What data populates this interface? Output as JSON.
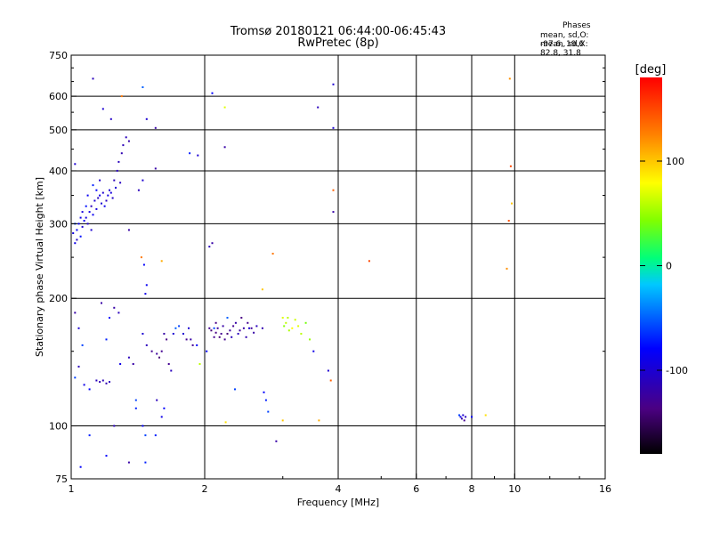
{
  "header": {
    "title": "Tromsø 20180121 06:44:00-06:45:43",
    "subtitle": "RwPretec (8p)",
    "stats_title": "Phases",
    "stats_o": "mean, sd,O: -97.6, 19.6",
    "stats_x": "mean, sd,X:  82.8, 31.8"
  },
  "colorbar": {
    "unit": "deg",
    "ticks": [
      {
        "value": 100,
        "label": "100"
      },
      {
        "value": 0,
        "label": "0"
      },
      {
        "value": -100,
        "label": "-100"
      }
    ],
    "range": [
      -180,
      180
    ]
  },
  "chart_data": {
    "type": "scatter",
    "title": "Tromsø 20180121 06:44:00-06:45:43",
    "subtitle": "RwPretec (8p)",
    "xlabel": "Frequency [MHz]",
    "ylabel": "Stationary phase Virtual Height [km]",
    "xscale": "log",
    "yscale": "log",
    "xlim": [
      1,
      16
    ],
    "ylim": [
      75,
      750
    ],
    "xticks": [
      {
        "value": 1,
        "label": "1"
      },
      {
        "value": 2,
        "label": "2"
      },
      {
        "value": 4,
        "label": "4"
      },
      {
        "value": 6,
        "label": "6"
      },
      {
        "value": 8,
        "label": "8"
      },
      {
        "value": 10,
        "label": "10"
      },
      {
        "value": 16,
        "label": "16"
      }
    ],
    "xgrid": [
      2,
      4,
      6,
      8,
      10
    ],
    "yticks": [
      {
        "value": 75,
        "label": "75"
      },
      {
        "value": 100,
        "label": "100"
      },
      {
        "value": 200,
        "label": "200"
      },
      {
        "value": 300,
        "label": "300"
      },
      {
        "value": 400,
        "label": "400"
      },
      {
        "value": 500,
        "label": "500"
      },
      {
        "value": 600,
        "label": "600"
      },
      {
        "value": 750,
        "label": "750"
      }
    ],
    "ygrid": [
      100,
      200,
      300,
      400,
      500,
      600
    ],
    "color_scale": "phase [deg], -180 to 180",
    "points": [
      {
        "x": 1.01,
        "y": 285,
        "p": -95
      },
      {
        "x": 1.02,
        "y": 270,
        "p": -90
      },
      {
        "x": 1.03,
        "y": 290,
        "p": -80
      },
      {
        "x": 1.04,
        "y": 300,
        "p": -85
      },
      {
        "x": 1.05,
        "y": 280,
        "p": -75
      },
      {
        "x": 1.06,
        "y": 295,
        "p": -100
      },
      {
        "x": 1.07,
        "y": 305,
        "p": -88
      },
      {
        "x": 1.08,
        "y": 310,
        "p": -95
      },
      {
        "x": 1.09,
        "y": 300,
        "p": -105
      },
      {
        "x": 1.1,
        "y": 320,
        "p": -92
      },
      {
        "x": 1.11,
        "y": 330,
        "p": -110
      },
      {
        "x": 1.12,
        "y": 315,
        "p": -85
      },
      {
        "x": 1.13,
        "y": 340,
        "p": -100
      },
      {
        "x": 1.14,
        "y": 325,
        "p": -95
      },
      {
        "x": 1.15,
        "y": 345,
        "p": -108
      },
      {
        "x": 1.16,
        "y": 350,
        "p": -90
      },
      {
        "x": 1.17,
        "y": 335,
        "p": -100
      },
      {
        "x": 1.18,
        "y": 355,
        "p": -102
      },
      {
        "x": 1.2,
        "y": 340,
        "p": -110
      },
      {
        "x": 1.22,
        "y": 360,
        "p": -98
      },
      {
        "x": 1.24,
        "y": 345,
        "p": -105
      },
      {
        "x": 1.25,
        "y": 380,
        "p": -112
      },
      {
        "x": 1.27,
        "y": 400,
        "p": -108
      },
      {
        "x": 1.28,
        "y": 420,
        "p": -110
      },
      {
        "x": 1.3,
        "y": 440,
        "p": -115
      },
      {
        "x": 1.31,
        "y": 460,
        "p": -112
      },
      {
        "x": 1.33,
        "y": 480,
        "p": -110
      },
      {
        "x": 1.35,
        "y": 470,
        "p": -118
      },
      {
        "x": 1.26,
        "y": 365,
        "p": -100
      },
      {
        "x": 1.29,
        "y": 375,
        "p": -108
      },
      {
        "x": 1.23,
        "y": 355,
        "p": -95
      },
      {
        "x": 1.21,
        "y": 350,
        "p": -92
      },
      {
        "x": 1.19,
        "y": 330,
        "p": -88
      },
      {
        "x": 1.14,
        "y": 360,
        "p": -80
      },
      {
        "x": 1.12,
        "y": 370,
        "p": -70
      },
      {
        "x": 1.08,
        "y": 330,
        "p": -75
      },
      {
        "x": 1.02,
        "y": 300,
        "p": -60
      },
      {
        "x": 1.03,
        "y": 275,
        "p": -105
      },
      {
        "x": 1.05,
        "y": 310,
        "p": -90
      },
      {
        "x": 1.06,
        "y": 320,
        "p": -95
      },
      {
        "x": 1.09,
        "y": 350,
        "p": -85
      },
      {
        "x": 1.11,
        "y": 290,
        "p": -100
      },
      {
        "x": 1.16,
        "y": 380,
        "p": -105
      },
      {
        "x": 1.02,
        "y": 415,
        "p": -100
      },
      {
        "x": 1.18,
        "y": 560,
        "p": -100
      },
      {
        "x": 1.23,
        "y": 530,
        "p": -105
      },
      {
        "x": 1.12,
        "y": 660,
        "p": -110
      },
      {
        "x": 1.3,
        "y": 600,
        "p": 130
      },
      {
        "x": 1.45,
        "y": 630,
        "p": -50
      },
      {
        "x": 1.48,
        "y": 530,
        "p": -100
      },
      {
        "x": 1.55,
        "y": 505,
        "p": -120
      },
      {
        "x": 1.42,
        "y": 360,
        "p": -110
      },
      {
        "x": 1.45,
        "y": 380,
        "p": -100
      },
      {
        "x": 1.55,
        "y": 405,
        "p": -120
      },
      {
        "x": 1.35,
        "y": 290,
        "p": -120
      },
      {
        "x": 1.44,
        "y": 250,
        "p": 130
      },
      {
        "x": 1.46,
        "y": 240,
        "p": -80
      },
      {
        "x": 1.48,
        "y": 215,
        "p": -85
      },
      {
        "x": 1.47,
        "y": 205,
        "p": -90
      },
      {
        "x": 1.6,
        "y": 245,
        "p": 110
      },
      {
        "x": 1.85,
        "y": 440,
        "p": -70
      },
      {
        "x": 1.93,
        "y": 435,
        "p": -100
      },
      {
        "x": 2.08,
        "y": 610,
        "p": -80
      },
      {
        "x": 2.22,
        "y": 565,
        "p": 70
      },
      {
        "x": 2.22,
        "y": 455,
        "p": -120
      },
      {
        "x": 2.05,
        "y": 265,
        "p": -110
      },
      {
        "x": 2.08,
        "y": 270,
        "p": -120
      },
      {
        "x": 2.7,
        "y": 210,
        "p": 100
      },
      {
        "x": 2.85,
        "y": 255,
        "p": 130
      },
      {
        "x": 3.6,
        "y": 565,
        "p": -110
      },
      {
        "x": 3.9,
        "y": 640,
        "p": -100
      },
      {
        "x": 3.9,
        "y": 505,
        "p": -100
      },
      {
        "x": 3.9,
        "y": 360,
        "p": 140
      },
      {
        "x": 3.9,
        "y": 320,
        "p": -120
      },
      {
        "x": 4.7,
        "y": 245,
        "p": 150
      },
      {
        "x": 9.75,
        "y": 660,
        "p": 120
      },
      {
        "x": 9.8,
        "y": 410,
        "p": 150
      },
      {
        "x": 9.85,
        "y": 335,
        "p": 100
      },
      {
        "x": 9.7,
        "y": 305,
        "p": 145
      },
      {
        "x": 9.6,
        "y": 235,
        "p": 120
      },
      {
        "x": 1.02,
        "y": 185,
        "p": -120
      },
      {
        "x": 1.04,
        "y": 170,
        "p": -100
      },
      {
        "x": 1.06,
        "y": 155,
        "p": -60
      },
      {
        "x": 1.07,
        "y": 125,
        "p": -90
      },
      {
        "x": 1.1,
        "y": 122,
        "p": -80
      },
      {
        "x": 1.14,
        "y": 128,
        "p": -110
      },
      {
        "x": 1.16,
        "y": 127,
        "p": -115
      },
      {
        "x": 1.18,
        "y": 128,
        "p": -112
      },
      {
        "x": 1.2,
        "y": 126,
        "p": -115
      },
      {
        "x": 1.22,
        "y": 127,
        "p": -110
      },
      {
        "x": 1.17,
        "y": 195,
        "p": -120
      },
      {
        "x": 1.22,
        "y": 180,
        "p": -80
      },
      {
        "x": 1.25,
        "y": 190,
        "p": -120
      },
      {
        "x": 1.28,
        "y": 185,
        "p": -110
      },
      {
        "x": 1.29,
        "y": 140,
        "p": -90
      },
      {
        "x": 1.35,
        "y": 145,
        "p": -110
      },
      {
        "x": 1.38,
        "y": 140,
        "p": -120
      },
      {
        "x": 1.45,
        "y": 165,
        "p": -100
      },
      {
        "x": 1.4,
        "y": 115,
        "p": -60
      },
      {
        "x": 1.4,
        "y": 110,
        "p": -70
      },
      {
        "x": 1.45,
        "y": 100,
        "p": -80
      },
      {
        "x": 1.47,
        "y": 95,
        "p": -60
      },
      {
        "x": 1.48,
        "y": 155,
        "p": -110
      },
      {
        "x": 1.52,
        "y": 150,
        "p": -130
      },
      {
        "x": 1.56,
        "y": 148,
        "p": -125
      },
      {
        "x": 1.58,
        "y": 145,
        "p": -140
      },
      {
        "x": 1.6,
        "y": 150,
        "p": -130
      },
      {
        "x": 1.62,
        "y": 165,
        "p": -120
      },
      {
        "x": 1.64,
        "y": 160,
        "p": -135
      },
      {
        "x": 1.66,
        "y": 140,
        "p": -130
      },
      {
        "x": 1.68,
        "y": 135,
        "p": -110
      },
      {
        "x": 1.7,
        "y": 165,
        "p": -100
      },
      {
        "x": 1.72,
        "y": 170,
        "p": -50
      },
      {
        "x": 1.75,
        "y": 172,
        "p": -60
      },
      {
        "x": 1.79,
        "y": 165,
        "p": -100
      },
      {
        "x": 1.82,
        "y": 160,
        "p": -130
      },
      {
        "x": 1.84,
        "y": 170,
        "p": -100
      },
      {
        "x": 1.86,
        "y": 160,
        "p": -120
      },
      {
        "x": 1.88,
        "y": 155,
        "p": -130
      },
      {
        "x": 1.92,
        "y": 155,
        "p": -80
      },
      {
        "x": 1.95,
        "y": 140,
        "p": 60
      },
      {
        "x": 1.56,
        "y": 115,
        "p": -110
      },
      {
        "x": 1.6,
        "y": 105,
        "p": -90
      },
      {
        "x": 1.62,
        "y": 110,
        "p": -80
      },
      {
        "x": 1.55,
        "y": 95,
        "p": -70
      },
      {
        "x": 1.25,
        "y": 100,
        "p": -110
      },
      {
        "x": 1.1,
        "y": 95,
        "p": -70
      },
      {
        "x": 1.35,
        "y": 82,
        "p": -120
      },
      {
        "x": 1.2,
        "y": 85,
        "p": -80
      },
      {
        "x": 1.05,
        "y": 80,
        "p": -80
      },
      {
        "x": 1.47,
        "y": 82,
        "p": -70
      },
      {
        "x": 1.02,
        "y": 130,
        "p": -60
      },
      {
        "x": 1.04,
        "y": 138,
        "p": -110
      },
      {
        "x": 1.2,
        "y": 160,
        "p": -70
      },
      {
        "x": 2.05,
        "y": 170,
        "p": -130
      },
      {
        "x": 2.07,
        "y": 168,
        "p": -140
      },
      {
        "x": 2.1,
        "y": 162,
        "p": -130
      },
      {
        "x": 2.12,
        "y": 166,
        "p": -135
      },
      {
        "x": 2.14,
        "y": 170,
        "p": -125
      },
      {
        "x": 2.16,
        "y": 162,
        "p": -140
      },
      {
        "x": 2.18,
        "y": 165,
        "p": -130
      },
      {
        "x": 2.2,
        "y": 172,
        "p": -120
      },
      {
        "x": 2.22,
        "y": 160,
        "p": -130
      },
      {
        "x": 2.25,
        "y": 165,
        "p": -140
      },
      {
        "x": 2.28,
        "y": 168,
        "p": -125
      },
      {
        "x": 2.32,
        "y": 172,
        "p": -130
      },
      {
        "x": 2.35,
        "y": 175,
        "p": -120
      },
      {
        "x": 2.38,
        "y": 165,
        "p": -110
      },
      {
        "x": 2.4,
        "y": 168,
        "p": -125
      },
      {
        "x": 2.42,
        "y": 180,
        "p": -135
      },
      {
        "x": 2.45,
        "y": 170,
        "p": -120
      },
      {
        "x": 2.48,
        "y": 162,
        "p": -115
      },
      {
        "x": 2.5,
        "y": 175,
        "p": -130
      },
      {
        "x": 2.55,
        "y": 170,
        "p": -125
      },
      {
        "x": 2.58,
        "y": 166,
        "p": -120
      },
      {
        "x": 2.62,
        "y": 172,
        "p": -110
      },
      {
        "x": 2.7,
        "y": 170,
        "p": -115
      },
      {
        "x": 2.12,
        "y": 175,
        "p": -135
      },
      {
        "x": 2.3,
        "y": 162,
        "p": -110
      },
      {
        "x": 2.02,
        "y": 150,
        "p": -80
      },
      {
        "x": 2.34,
        "y": 122,
        "p": -60
      },
      {
        "x": 2.23,
        "y": 102,
        "p": 90
      },
      {
        "x": 2.72,
        "y": 120,
        "p": -80
      },
      {
        "x": 2.75,
        "y": 115,
        "p": -70
      },
      {
        "x": 2.78,
        "y": 108,
        "p": -60
      },
      {
        "x": 2.9,
        "y": 92,
        "p": -120
      },
      {
        "x": 3.0,
        "y": 180,
        "p": 70
      },
      {
        "x": 3.05,
        "y": 175,
        "p": 60
      },
      {
        "x": 3.1,
        "y": 168,
        "p": 55
      },
      {
        "x": 3.15,
        "y": 170,
        "p": 80
      },
      {
        "x": 3.2,
        "y": 178,
        "p": 65
      },
      {
        "x": 3.02,
        "y": 172,
        "p": 45
      },
      {
        "x": 3.08,
        "y": 180,
        "p": 60
      },
      {
        "x": 3.25,
        "y": 172,
        "p": 70
      },
      {
        "x": 3.3,
        "y": 165,
        "p": 60
      },
      {
        "x": 3.38,
        "y": 175,
        "p": 40
      },
      {
        "x": 3.45,
        "y": 160,
        "p": 50
      },
      {
        "x": 3.0,
        "y": 103,
        "p": 100
      },
      {
        "x": 3.52,
        "y": 150,
        "p": -90
      },
      {
        "x": 3.62,
        "y": 103,
        "p": 110
      },
      {
        "x": 3.8,
        "y": 135,
        "p": -100
      },
      {
        "x": 3.85,
        "y": 128,
        "p": 140
      },
      {
        "x": 2.1,
        "y": 170,
        "p": -60
      },
      {
        "x": 2.25,
        "y": 180,
        "p": -50
      },
      {
        "x": 2.52,
        "y": 170,
        "p": -100
      },
      {
        "x": 7.5,
        "y": 106,
        "p": -60
      },
      {
        "x": 7.55,
        "y": 105,
        "p": -90
      },
      {
        "x": 7.6,
        "y": 104,
        "p": -120
      },
      {
        "x": 7.65,
        "y": 106,
        "p": -100
      },
      {
        "x": 7.7,
        "y": 103,
        "p": -130
      },
      {
        "x": 7.75,
        "y": 105,
        "p": -110
      },
      {
        "x": 8.0,
        "y": 105,
        "p": -80
      },
      {
        "x": 8.6,
        "y": 106,
        "p": 90
      }
    ]
  }
}
